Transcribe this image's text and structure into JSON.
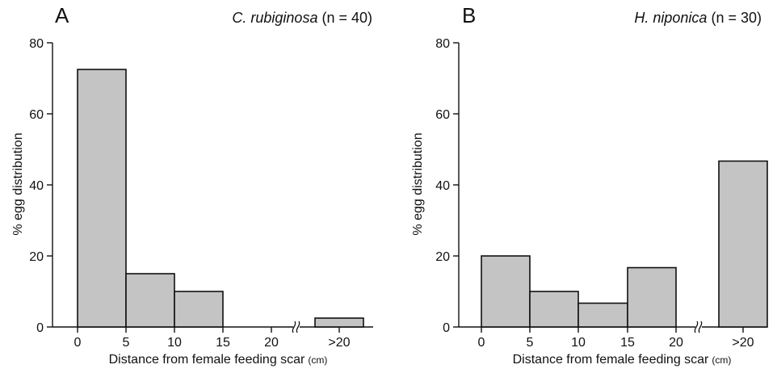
{
  "chart_data": [
    {
      "type": "bar",
      "panel": "A",
      "species": "C. rubiginosa",
      "sample": "(n = 40)",
      "xlabel": "Distance from female feeding scar",
      "xunit": "(cm)",
      "ylabel": "% egg distribution",
      "ylim": [
        0,
        80
      ],
      "yticks": [
        "0",
        "20",
        "40",
        "60",
        "80"
      ],
      "xticks": [
        "0",
        "5",
        "10",
        "15",
        "20",
        ">20"
      ],
      "categories": [
        "0-5",
        "5-10",
        "10-15",
        "15-20",
        ">20"
      ],
      "values": [
        72.5,
        15,
        10,
        0,
        2.5
      ],
      "axis_break": true
    },
    {
      "type": "bar",
      "panel": "B",
      "species": "H. niponica",
      "sample": "(n = 30)",
      "xlabel": "Distance from female feeding scar",
      "xunit": "(cm)",
      "ylabel": "% egg distribution",
      "ylim": [
        0,
        80
      ],
      "yticks": [
        "0",
        "20",
        "40",
        "60",
        "80"
      ],
      "xticks": [
        "0",
        "5",
        "10",
        "15",
        "20",
        ">20"
      ],
      "categories": [
        "0-5",
        "5-10",
        "10-15",
        "15-20",
        ">20"
      ],
      "values": [
        20,
        10,
        6.7,
        16.7,
        46.7
      ],
      "axis_break": true
    }
  ]
}
